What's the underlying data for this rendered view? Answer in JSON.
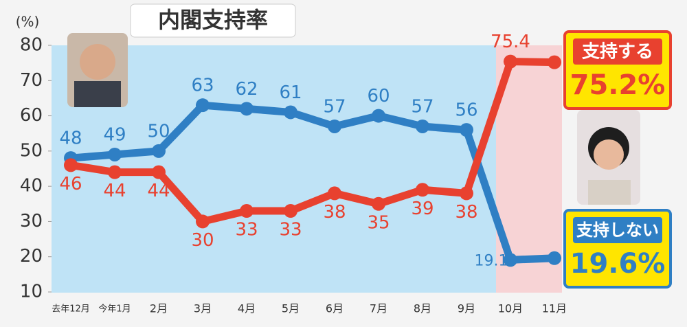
{
  "chart_data": {
    "type": "line",
    "title": "内閣支持率",
    "y_unit": "(%)",
    "categories": [
      "去年12月",
      "今年1月",
      "2月",
      "3月",
      "4月",
      "5月",
      "6月",
      "7月",
      "8月",
      "9月",
      "10月",
      "11月"
    ],
    "series": [
      {
        "name": "支持しない",
        "color": "#2f7fc4",
        "values": [
          48,
          49,
          50,
          63,
          62,
          61,
          57,
          60,
          57,
          56,
          19.1,
          19.6
        ],
        "value_labels": [
          "48",
          "49",
          "50",
          "63",
          "62",
          "61",
          "57",
          "60",
          "57",
          "56",
          "19.1",
          "19.6%"
        ]
      },
      {
        "name": "支持する",
        "color": "#e8412f",
        "values": [
          46,
          44,
          44,
          30,
          33,
          33,
          38,
          35,
          39,
          38,
          75.4,
          75.2
        ],
        "value_labels": [
          "46",
          "44",
          "44",
          "30",
          "33",
          "33",
          "38",
          "35",
          "39",
          "38",
          "75.4",
          "75.2%"
        ]
      }
    ],
    "ylim": [
      10,
      80
    ],
    "yticks": [
      10,
      20,
      30,
      40,
      50,
      60,
      70,
      80
    ],
    "grid": false
  }
}
